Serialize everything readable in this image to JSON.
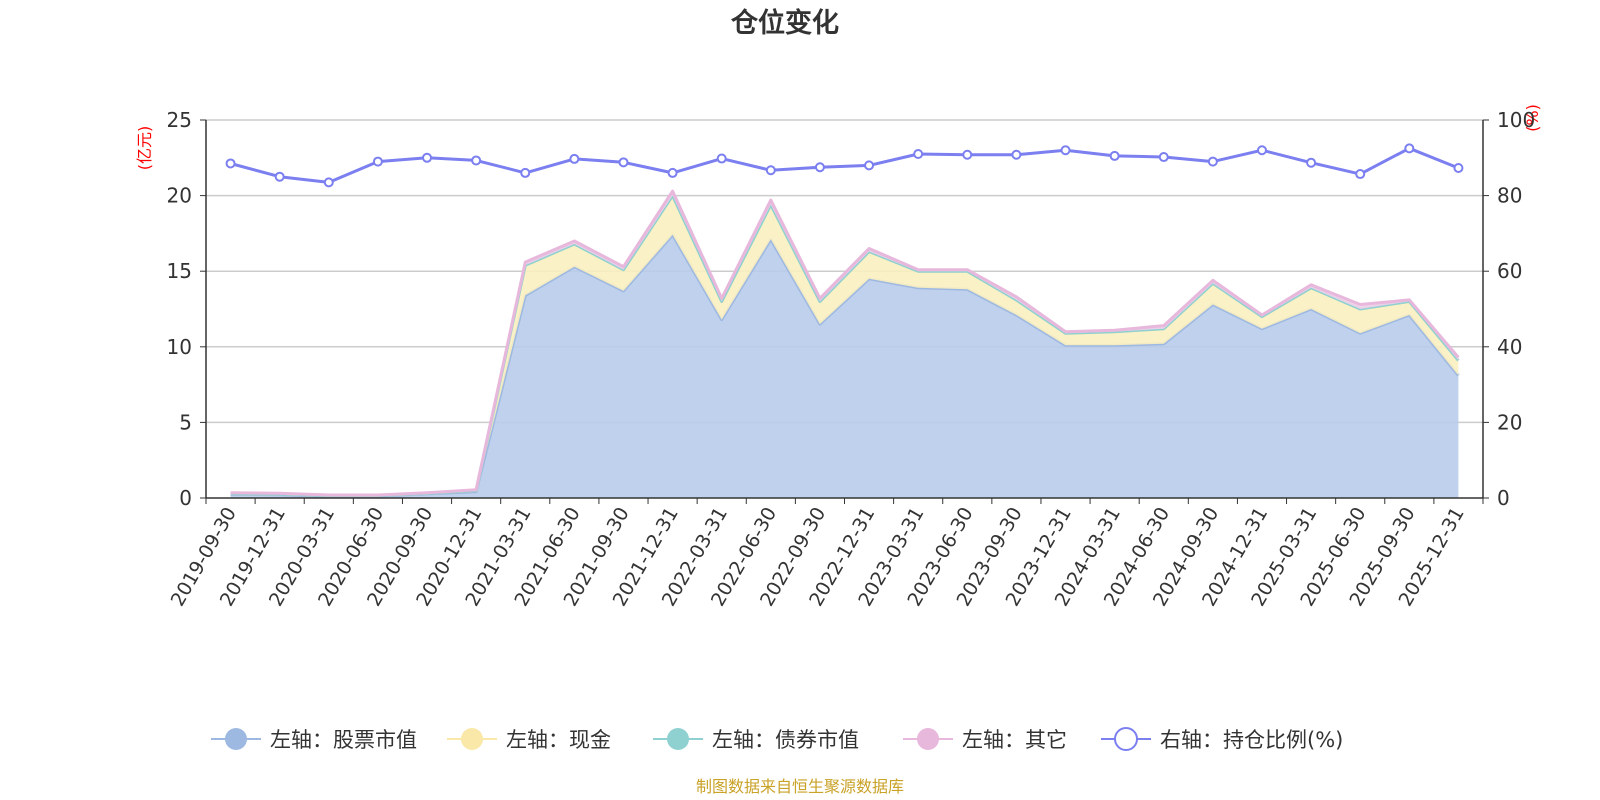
{
  "chart_data": {
    "type": "area",
    "title": "仓位变化",
    "left_axis": {
      "unit": "(亿元)",
      "min": 0,
      "max": 25,
      "ticks": [
        "0",
        "5",
        "10",
        "15",
        "20",
        "25"
      ]
    },
    "right_axis": {
      "unit": "(%)",
      "min": 0,
      "max": 100,
      "ticks": [
        "0",
        "20",
        "40",
        "60",
        "80",
        "100"
      ]
    },
    "categories": [
      "2019-09-30",
      "2019-12-31",
      "2020-03-31",
      "2020-06-30",
      "2020-09-30",
      "2020-12-31",
      "2021-03-31",
      "2021-06-30",
      "2021-09-30",
      "2021-12-31",
      "2022-03-31",
      "2022-06-30",
      "2022-09-30",
      "2022-12-31",
      "2023-03-31",
      "2023-06-30",
      "2023-09-30",
      "2023-12-31",
      "2024-03-31",
      "2024-06-30",
      "2024-09-30",
      "2024-12-31",
      "2025-03-31",
      "2025-06-30",
      "2025-09-30",
      "2025-12-31"
    ],
    "stack_series": [
      {
        "name": "股票市值",
        "legend": "左轴：股票市值",
        "color": "#9db8e1",
        "fill": "#b8cceb",
        "values": [
          0.25,
          0.22,
          0.12,
          0.13,
          0.27,
          0.42,
          13.4,
          15.3,
          13.7,
          17.4,
          11.8,
          17.1,
          11.5,
          14.5,
          13.9,
          13.8,
          12.1,
          10.1,
          10.1,
          10.2,
          12.8,
          11.2,
          12.5,
          10.9,
          12.1,
          8.1
        ]
      },
      {
        "name": "现金",
        "legend": "左轴：现金",
        "color": "#f9e8a8",
        "fill": "#fbefc0",
        "values": [
          0.05,
          0.05,
          0.05,
          0.05,
          0.05,
          0.08,
          2.0,
          1.5,
          1.4,
          2.6,
          1.2,
          2.3,
          1.5,
          1.8,
          1.1,
          1.2,
          1.0,
          0.8,
          0.9,
          1.0,
          1.4,
          0.8,
          1.4,
          1.6,
          0.9,
          1.0
        ]
      },
      {
        "name": "债券市值",
        "legend": "左轴：债券市值",
        "color": "#8fd1d1",
        "fill": "#a8dcdc",
        "values": [
          0,
          0,
          0,
          0,
          0,
          0,
          0,
          0,
          0,
          0,
          0,
          0,
          0,
          0,
          0,
          0,
          0,
          0,
          0,
          0,
          0,
          0,
          0,
          0,
          0,
          0
        ]
      },
      {
        "name": "其它",
        "legend": "左轴：其它",
        "color": "#e7b7dc",
        "fill": "#f1d0ea",
        "values": [
          0.05,
          0.05,
          0.03,
          0.02,
          0.03,
          0.05,
          0.2,
          0.2,
          0.2,
          0.3,
          0.2,
          0.3,
          0.2,
          0.2,
          0.1,
          0.1,
          0.2,
          0.1,
          0.1,
          0.2,
          0.2,
          0.1,
          0.2,
          0.3,
          0.1,
          0.2
        ]
      }
    ],
    "line_series": {
      "name": "持仓比例(%)",
      "legend": "右轴：持仓比例(%)",
      "color": "#7b7ff0",
      "values": [
        88.5,
        85,
        83.5,
        89,
        90,
        89.3,
        86,
        89.7,
        88.8,
        86,
        89.8,
        86.7,
        87.5,
        88,
        91,
        90.8,
        90.8,
        92,
        90.5,
        90.2,
        89,
        92,
        88.7,
        85.7,
        92.5,
        87.3
      ]
    },
    "source": "制图数据来自恒生聚源数据库"
  }
}
